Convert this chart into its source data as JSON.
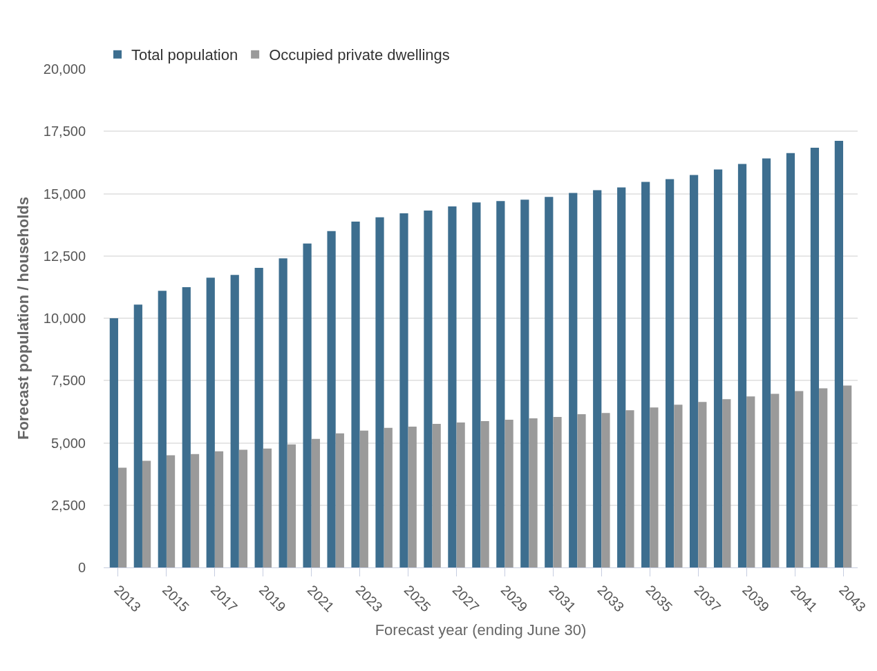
{
  "chart_data": {
    "type": "bar",
    "xlabel": "Forecast year (ending June 30)",
    "ylabel": "Forecast population / households",
    "categories": [
      "2013",
      null,
      "2015",
      null,
      "2017",
      null,
      "2019",
      null,
      "2021",
      null,
      "2023",
      null,
      "2025",
      null,
      "2027",
      null,
      "2029",
      null,
      "2031",
      null,
      "2033",
      null,
      "2035",
      null,
      "2037",
      null,
      "2039",
      null,
      "2041",
      null,
      "2043"
    ],
    "series": [
      {
        "name": "Total population",
        "color": "#3d6e8f",
        "values": [
          10000,
          10550,
          11100,
          11250,
          11630,
          11740,
          12020,
          12400,
          13000,
          13500,
          13880,
          14050,
          14210,
          14320,
          14490,
          14650,
          14700,
          14760,
          14870,
          15030,
          15140,
          15250,
          15470,
          15580,
          15750,
          15970,
          16190,
          16410,
          16630,
          16840,
          17120
        ]
      },
      {
        "name": "Occupied private dwellings",
        "color": "#9a9a9a",
        "values": [
          4000,
          4280,
          4500,
          4550,
          4660,
          4720,
          4770,
          4940,
          5160,
          5380,
          5490,
          5600,
          5650,
          5760,
          5820,
          5870,
          5930,
          5980,
          6040,
          6150,
          6200,
          6310,
          6420,
          6530,
          6640,
          6750,
          6860,
          6970,
          7080,
          7190,
          7300
        ]
      }
    ],
    "ylim": [
      0,
      20000
    ],
    "yticks": [
      {
        "value": 0,
        "label": "0"
      },
      {
        "value": 2500,
        "label": "2,500"
      },
      {
        "value": 5000,
        "label": "5,000"
      },
      {
        "value": 7500,
        "label": "7,500"
      },
      {
        "value": 10000,
        "label": "10,000"
      },
      {
        "value": 12500,
        "label": "12,500"
      },
      {
        "value": 15000,
        "label": "15,000"
      },
      {
        "value": 17500,
        "label": "17,500"
      },
      {
        "value": 20000,
        "label": "20,000"
      }
    ],
    "grid": "y",
    "legend": "top left"
  }
}
